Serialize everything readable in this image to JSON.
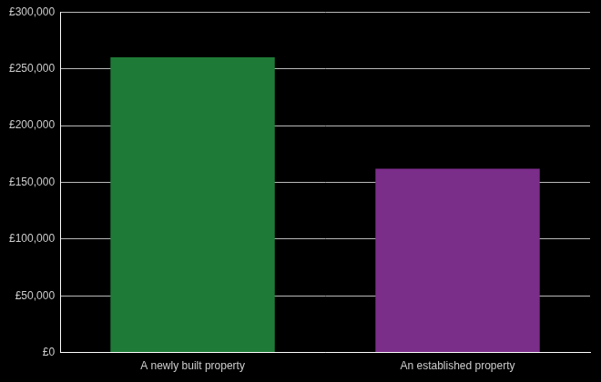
{
  "chart_data": {
    "type": "bar",
    "categories": [
      "A newly built property",
      "An established property"
    ],
    "values": [
      260000,
      162000
    ],
    "colors": [
      "#1e7b37",
      "#7b2d8a"
    ],
    "ylim": [
      0,
      300000
    ],
    "yticks": [
      {
        "value": 0,
        "label": "£0"
      },
      {
        "value": 50000,
        "label": "£50,000"
      },
      {
        "value": 100000,
        "label": "£100,000"
      },
      {
        "value": 150000,
        "label": "£150,000"
      },
      {
        "value": 200000,
        "label": "£200,000"
      },
      {
        "value": 250000,
        "label": "£250,000"
      },
      {
        "value": 300000,
        "label": "£300,000"
      }
    ],
    "grid": true
  }
}
